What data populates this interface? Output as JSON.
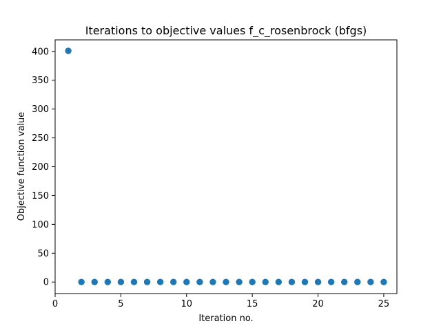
{
  "chart_data": {
    "type": "scatter",
    "title": "Iterations to objective values f_c_rosenbrock (bfgs)",
    "xlabel": "Iteration no.",
    "ylabel": "Objective function value",
    "xlim": [
      0,
      26
    ],
    "ylim": [
      -20,
      420
    ],
    "xticks": [
      0,
      5,
      10,
      15,
      20,
      25
    ],
    "yticks": [
      0,
      50,
      100,
      150,
      200,
      250,
      300,
      350,
      400
    ],
    "grid": false,
    "series": [
      {
        "color": "#1f77b4",
        "x": [
          1,
          2,
          3,
          4,
          5,
          6,
          7,
          8,
          9,
          10,
          11,
          12,
          13,
          14,
          15,
          16,
          17,
          18,
          19,
          20,
          21,
          22,
          23,
          24,
          25
        ],
        "y": [
          401,
          0,
          0,
          0,
          0,
          0,
          0,
          0,
          0,
          0,
          0,
          0,
          0,
          0,
          0,
          0,
          0,
          0,
          0,
          0,
          0,
          0,
          0,
          0,
          0
        ]
      }
    ]
  }
}
